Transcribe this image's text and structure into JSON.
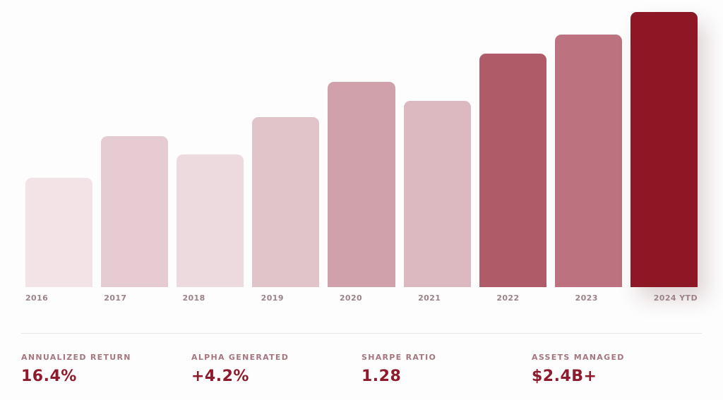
{
  "page": {
    "background": "#fdfdfd",
    "divider_color": "#eae5e6",
    "accent_color": "#8e1726",
    "muted_label_color": "#a5767e",
    "axis_label_color": "#9d8288"
  },
  "chart": {
    "bars": [
      {
        "year": "2016",
        "height_pct": 38.1,
        "color": "#f3e3e7",
        "highlight": false
      },
      {
        "year": "2017",
        "height_pct": 52.6,
        "color": "#e6ccd2",
        "highlight": false
      },
      {
        "year": "2018",
        "height_pct": 46.2,
        "color": "#eddade",
        "highlight": false
      },
      {
        "year": "2019",
        "height_pct": 59.2,
        "color": "#e1c4ca",
        "highlight": false
      },
      {
        "year": "2020",
        "height_pct": 71.5,
        "color": "#d0a1ab",
        "highlight": false
      },
      {
        "year": "2021",
        "height_pct": 64.9,
        "color": "#dcb9c0",
        "highlight": false
      },
      {
        "year": "2022",
        "height_pct": 81.3,
        "color": "#b05c68",
        "highlight": false
      },
      {
        "year": "2023",
        "height_pct": 88.0,
        "color": "#bc737f",
        "highlight": false
      },
      {
        "year": "2024 YTD",
        "height_pct": 95.8,
        "color": "#8e1726",
        "highlight": true
      }
    ]
  },
  "stats": [
    {
      "label": "ANNUALIZED RETURN",
      "value": "16.4%"
    },
    {
      "label": "ALPHA GENERATED",
      "value": "+4.2%"
    },
    {
      "label": "SHARPE RATIO",
      "value": "1.28"
    },
    {
      "label": "ASSETS MANAGED",
      "value": "$2.4B+"
    }
  ],
  "chart_data": {
    "type": "bar",
    "categories": [
      "2016",
      "2017",
      "2018",
      "2019",
      "2020",
      "2021",
      "2022",
      "2023",
      "2024 YTD"
    ],
    "values": [
      39.7,
      54.9,
      48.2,
      61.8,
      74.6,
      67.7,
      84.9,
      91.8,
      100
    ],
    "title": "",
    "xlabel": "",
    "ylabel": "",
    "ylim": [
      0,
      100
    ],
    "grid": false,
    "legend": false,
    "value_basis": "relative bar height as % of tallest bar (no y-axis shown in image)"
  }
}
